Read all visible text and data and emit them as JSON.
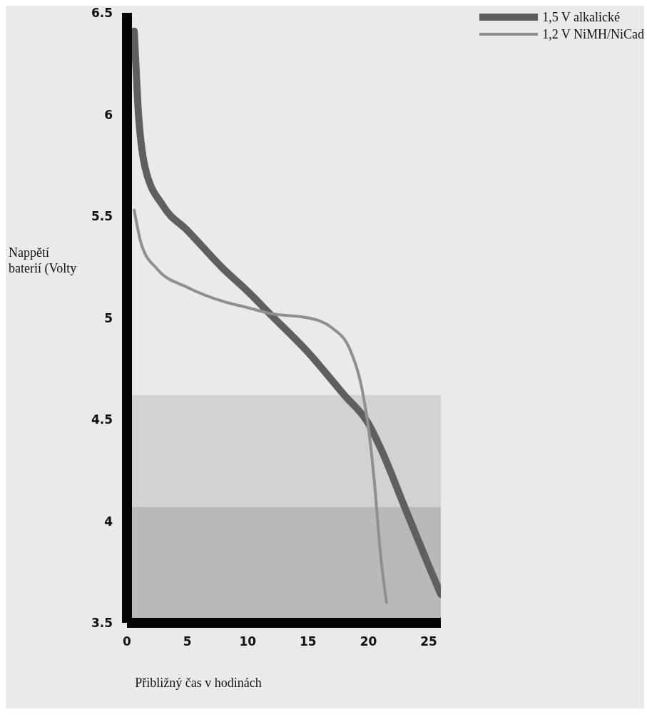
{
  "chart_data": {
    "type": "line",
    "xlabel": "Přibližný čas v hodinách",
    "ylabel": "Nappětí baterií (Volty",
    "xlim": [
      0,
      26
    ],
    "xticks": [
      0,
      5,
      10,
      15,
      20,
      25
    ],
    "ylim": [
      3.5,
      6.5
    ],
    "yticks": [
      3.5,
      4,
      4.5,
      5,
      5.5,
      6,
      6.5
    ],
    "grid": false,
    "legend": "top right",
    "marker": "none",
    "line_style": "solid",
    "bands": [
      {
        "axis": "y",
        "from": 4.07,
        "to": 4.62,
        "color": "#d2d2d2"
      },
      {
        "axis": "y",
        "from": 3.5,
        "to": 4.07,
        "color": "#b9b9b9"
      }
    ],
    "series": [
      {
        "name": "1,5 V alkalické",
        "color": "#5f5f5f",
        "x": [
          0.6,
          0.9,
          1.5,
          3,
          5,
          8,
          10,
          12,
          15,
          18,
          20,
          21,
          23,
          25,
          26
        ],
        "values": [
          6.41,
          6.05,
          5.74,
          5.55,
          5.43,
          5.24,
          5.13,
          5.01,
          4.83,
          4.62,
          4.48,
          4.36,
          4.07,
          3.78,
          3.64
        ]
      },
      {
        "name": "1,2 V NiMH/NiCad",
        "color": "#8f8f8f",
        "x": [
          0.6,
          1.2,
          2.5,
          5,
          8,
          10,
          12,
          15,
          17,
          18.5,
          19.5,
          20,
          20.5,
          21,
          21.5
        ],
        "values": [
          5.53,
          5.36,
          5.24,
          5.15,
          5.08,
          5.05,
          5.02,
          5.0,
          4.95,
          4.84,
          4.64,
          4.46,
          4.19,
          3.84,
          3.6
        ]
      }
    ]
  }
}
